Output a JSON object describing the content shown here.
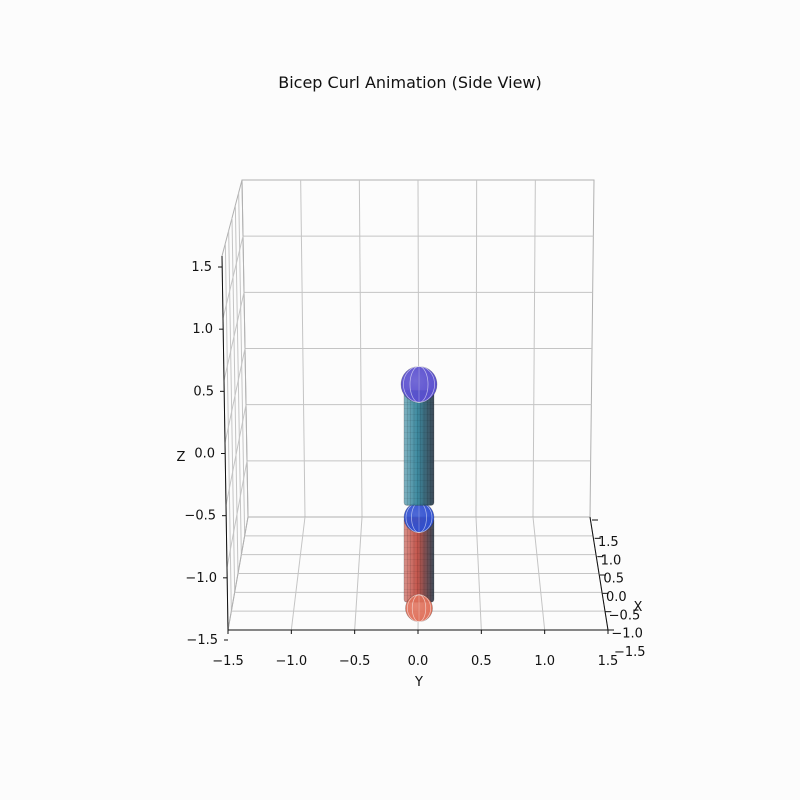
{
  "chart_data": {
    "type": "3d-surface",
    "title": "Bicep Curl Animation (Side View)",
    "xlabel": "X",
    "ylabel": "Y",
    "zlabel": "Z",
    "xlim": [
      -1.5,
      1.5
    ],
    "ylim": [
      -1.5,
      1.5
    ],
    "zlim": [
      -1.5,
      1.5
    ],
    "x_ticks": [
      "−1.5",
      "−1.0",
      "−0.5",
      "0.0",
      "0.5",
      "1.0",
      "1.5"
    ],
    "y_ticks": [
      "−1.5",
      "−1.0",
      "−0.5",
      "0.0",
      "0.5",
      "1.0",
      "1.5"
    ],
    "z_ticks": [
      "−1.5",
      "−1.0",
      "−0.5",
      "0.0",
      "0.5",
      "1.0",
      "1.5"
    ],
    "grid": true,
    "objects": [
      {
        "name": "shoulder",
        "shape": "sphere",
        "center": [
          0,
          0,
          0.6
        ],
        "radius": 0.12,
        "color": "#5a4fcf"
      },
      {
        "name": "upper-arm",
        "shape": "cylinder",
        "z_range": [
          -0.4,
          0.55
        ],
        "radius": 0.1,
        "color": "#3d8aa0"
      },
      {
        "name": "elbow",
        "shape": "sphere",
        "center": [
          0,
          0,
          -0.5
        ],
        "radius": 0.1,
        "color": "#2f4fd0"
      },
      {
        "name": "forearm",
        "shape": "cylinder",
        "z_range": [
          -1.2,
          -0.5
        ],
        "radius": 0.1,
        "color": "#c4564c"
      },
      {
        "name": "hand",
        "shape": "sphere",
        "center": [
          0,
          0,
          -1.25
        ],
        "radius": 0.09,
        "color": "#e0705a"
      }
    ]
  }
}
